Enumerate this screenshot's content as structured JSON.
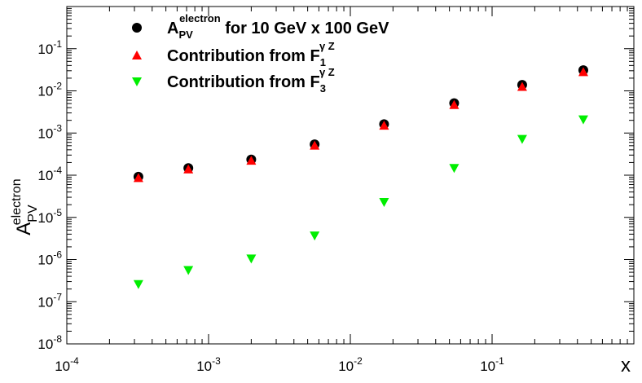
{
  "chart_data": {
    "type": "scatter",
    "xscale": "log",
    "yscale": "log",
    "xlim": [
      0.0001,
      1
    ],
    "ylim": [
      1e-08,
      1
    ],
    "xlabel": "x",
    "ylabel": {
      "base": "A",
      "sup": "electron",
      "sub": "PV"
    },
    "x_ticks": [
      {
        "base": "10",
        "exp": "-4"
      },
      {
        "base": "10",
        "exp": "-3"
      },
      {
        "base": "10",
        "exp": "-2"
      },
      {
        "base": "10",
        "exp": "-1"
      }
    ],
    "y_ticks": [
      {
        "base": "10",
        "exp": "-8"
      },
      {
        "base": "10",
        "exp": "-7"
      },
      {
        "base": "10",
        "exp": "-6"
      },
      {
        "base": "10",
        "exp": "-5"
      },
      {
        "base": "10",
        "exp": "-4"
      },
      {
        "base": "10",
        "exp": "-3"
      },
      {
        "base": "10",
        "exp": "-2"
      },
      {
        "base": "10",
        "exp": "-1"
      }
    ],
    "x": [
      0.00032,
      0.00072,
      0.002,
      0.0056,
      0.0173,
      0.054,
      0.163,
      0.44
    ],
    "series": [
      {
        "name": "A_PV^electron for 10 GeV x 100 GeV",
        "marker": "circle",
        "color": "#000000",
        "values": [
          9.2e-05,
          0.000148,
          0.000235,
          0.00054,
          0.00162,
          0.0051,
          0.0139,
          0.031
        ]
      },
      {
        "name": "Contribution from F_1^γZ",
        "marker": "triangle-up",
        "color": "#ff0000",
        "values": [
          8.6e-05,
          0.000138,
          0.000222,
          0.000505,
          0.0015,
          0.00465,
          0.0125,
          0.028
        ]
      },
      {
        "name": "Contribution from F_3^γZ",
        "marker": "triangle-down",
        "color": "#00ee00",
        "values": [
          2.6e-07,
          5.6e-07,
          1.05e-06,
          3.7e-06,
          2.3e-05,
          0.000148,
          0.00072,
          0.0021
        ]
      }
    ],
    "legend": [
      {
        "base": "A",
        "sub": "PV",
        "sup": "electron",
        "tail": " for 10 GeV x 100 GeV"
      },
      {
        "base": "Contribution from F",
        "sub": "1",
        "sup": "γ Z",
        "tail": ""
      },
      {
        "base": "Contribution from F",
        "sub": "3",
        "sup": "γ Z",
        "tail": ""
      }
    ]
  }
}
